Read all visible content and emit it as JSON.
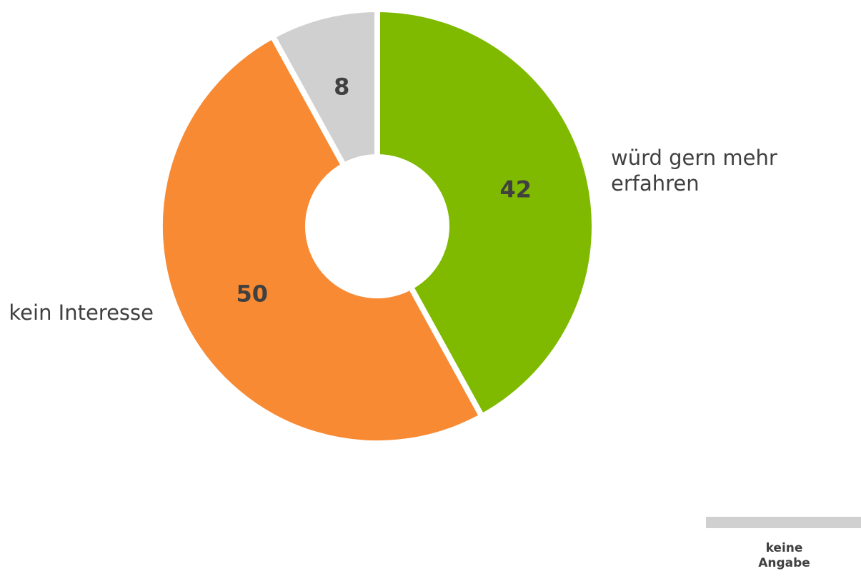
{
  "chart_data": {
    "type": "donut",
    "categories": [
      "würd gern mehr erfahren",
      "kein Interesse",
      "keine Angabe"
    ],
    "values": [
      42,
      50,
      8
    ],
    "colors": [
      "#7fba00",
      "#f88a33",
      "#d0d0d0"
    ],
    "legend": "bottom-right"
  }
}
